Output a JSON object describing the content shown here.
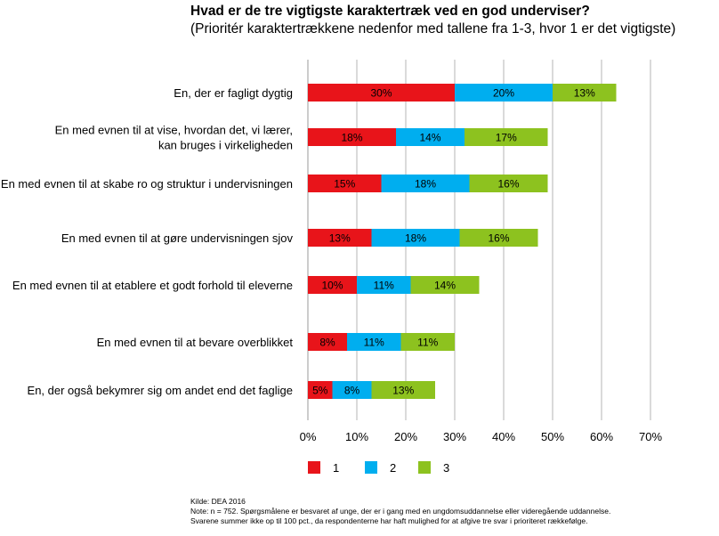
{
  "title": "Hvad er de tre vigtigste karaktertræk ved en god underviser?",
  "subtitle": "(Prioritér karaktertrækkene nedenfor med tallene fra 1-3, hvor 1 er det vigtigste)",
  "chart_data": {
    "type": "bar",
    "orientation": "horizontal",
    "stacked": true,
    "categories": [
      [
        "En, der er fagligt dygtig"
      ],
      [
        "En med evnen til at vise, hvordan det, vi lærer,",
        "kan bruges i virkeligheden"
      ],
      [
        "En med evnen til at skabe ro og struktur i undervisningen"
      ],
      [
        "En med evnen til at gøre undervisningen sjov"
      ],
      [
        "En med evnen til at etablere et godt forhold til eleverne"
      ],
      [
        "En med evnen til at bevare overblikket"
      ],
      [
        "En, der også bekymrer sig om andet end det faglige"
      ]
    ],
    "series": [
      {
        "name": "1",
        "color": "#e8141a",
        "values": [
          30,
          18,
          15,
          13,
          10,
          8,
          5
        ],
        "labels": [
          "30%",
          "18%",
          "15%",
          "13%",
          "10%",
          "8%",
          "5%"
        ]
      },
      {
        "name": "2",
        "color": "#00aeef",
        "values": [
          20,
          14,
          18,
          18,
          11,
          11,
          8
        ],
        "labels": [
          "20%",
          "14%",
          "18%",
          "18%",
          "11%",
          "11%",
          "8%"
        ]
      },
      {
        "name": "3",
        "color": "#8dc21f",
        "values": [
          13,
          17,
          16,
          16,
          14,
          11,
          13
        ],
        "labels": [
          "13%",
          "17%",
          "16%",
          "16%",
          "14%",
          "11%",
          "13%"
        ]
      }
    ],
    "xlim": [
      0,
      70
    ],
    "xticks": [
      "0%",
      "10%",
      "20%",
      "30%",
      "40%",
      "50%",
      "60%",
      "70%"
    ],
    "grid": true,
    "legend_position": "bottom"
  },
  "footer": {
    "source": "Kilde: DEA 2016",
    "note1": "Note: n = 752. Spørgsmålene er besvaret af unge, der er i gang med en ungdomsuddannelse eller videregående uddannelse.",
    "note2": "Svarene summer ikke op til 100 pct., da respondenterne har haft mulighed for at afgive tre svar i prioriteret rækkefølge."
  }
}
